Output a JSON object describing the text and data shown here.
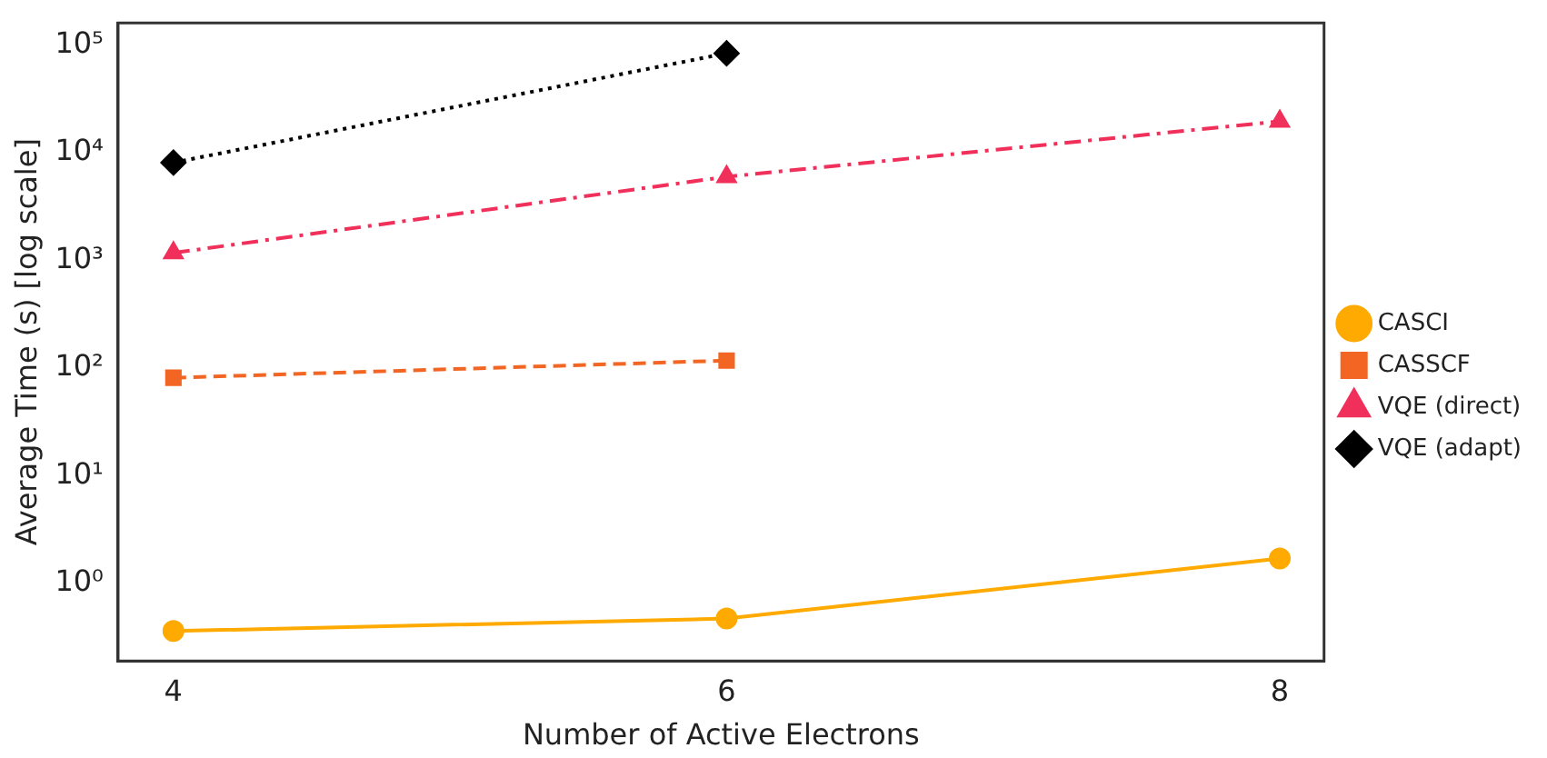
{
  "chart_data": {
    "type": "line",
    "xlabel": "Number of Active Electrons",
    "ylabel": "Average Time (s) [log scale]",
    "log": "y",
    "grid": false,
    "legend": "right",
    "xlim": [
      3.8,
      8.16
    ],
    "xticks": [
      4,
      6,
      8
    ],
    "ylim": [
      0.19,
      160000
    ],
    "yticks": [
      {
        "value": 1,
        "label": "10⁰"
      },
      {
        "value": 10,
        "label": "10¹"
      },
      {
        "value": 100,
        "label": "10²"
      },
      {
        "value": 1000,
        "label": "10³"
      },
      {
        "value": 10000,
        "label": "10⁴"
      },
      {
        "value": 100000,
        "label": "10⁵"
      }
    ],
    "series": [
      {
        "name": "CASCI",
        "color": "#ffaa00",
        "marker": "circle",
        "line_style": "solid",
        "x": [
          4,
          6,
          8
        ],
        "values": [
          0.36,
          0.47,
          1.7
        ]
      },
      {
        "name": "CASSCF",
        "color": "#f26522",
        "marker": "square",
        "line_style": "dashed",
        "x": [
          4,
          6
        ],
        "values": [
          81,
          117
        ]
      },
      {
        "name": "VQE (direct)",
        "color": "#f0305a",
        "marker": "triangle",
        "line_style": "dashdot",
        "x": [
          4,
          6,
          8
        ],
        "values": [
          1170,
          5960,
          19500
        ]
      },
      {
        "name": "VQE (adapt)",
        "color": "#000000",
        "marker": "diamond",
        "line_style": "dotted",
        "x": [
          4,
          6
        ],
        "values": [
          8070,
          83500
        ]
      }
    ]
  }
}
